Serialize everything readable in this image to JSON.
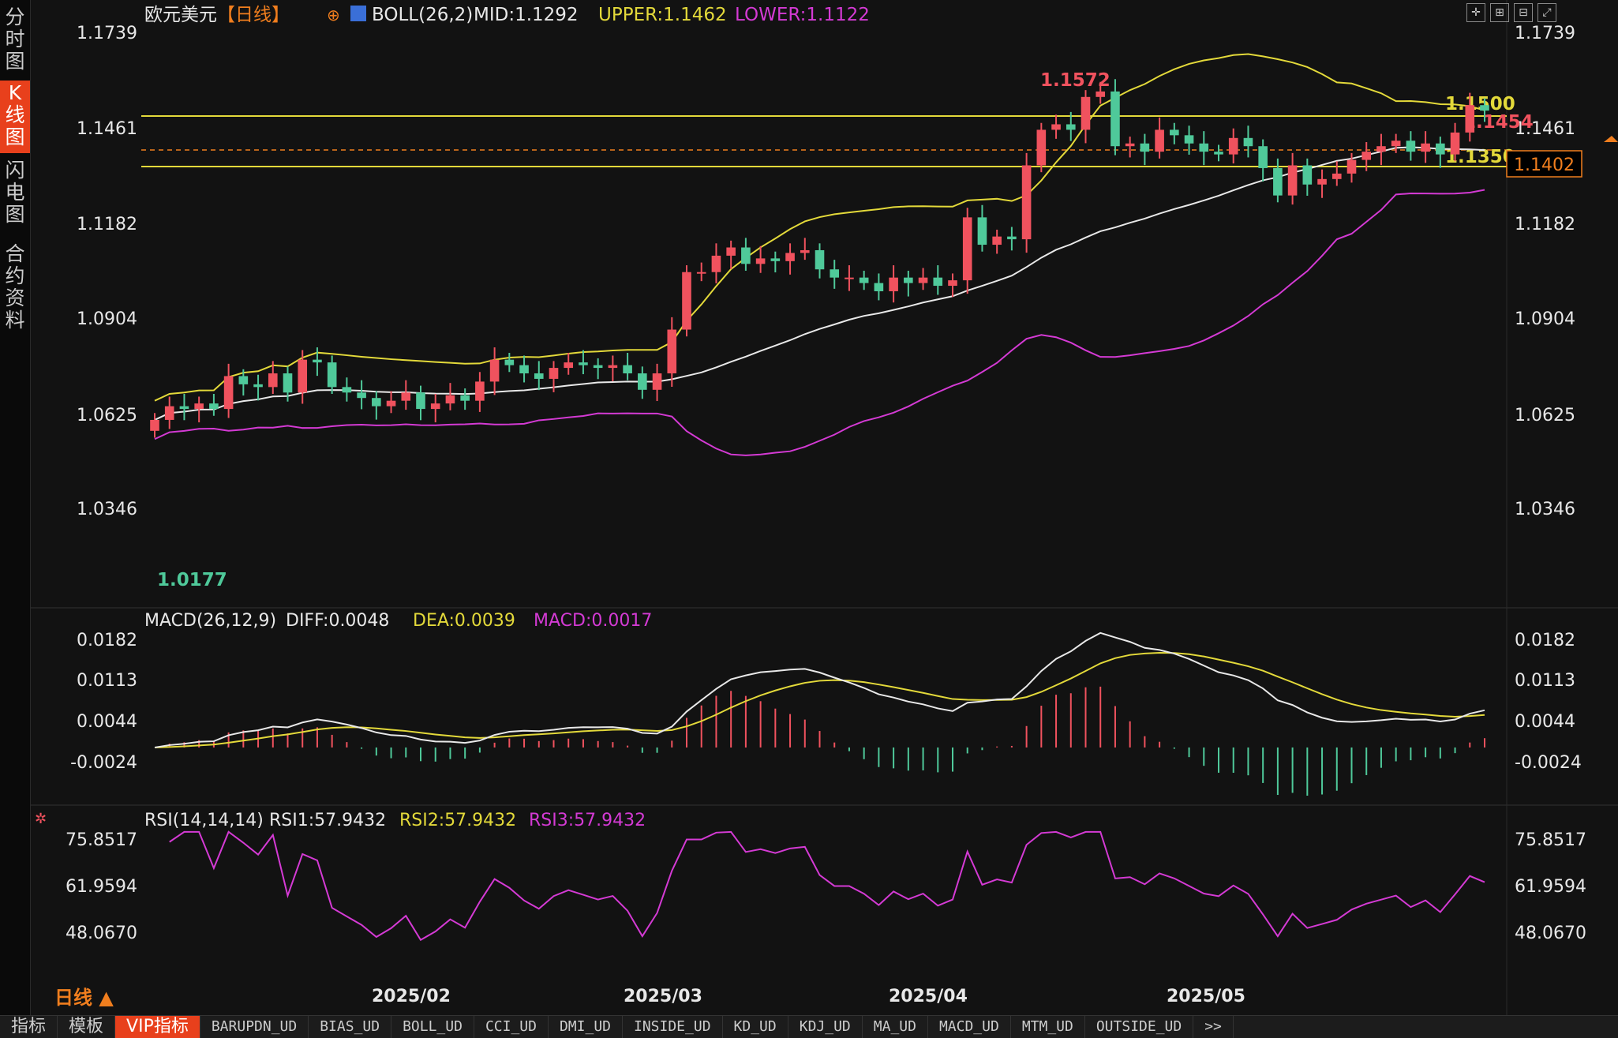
{
  "sidebar": {
    "tabs": [
      {
        "label": "分时图",
        "active": false
      },
      {
        "label": "K线图",
        "active": true
      },
      {
        "label": "闪电图",
        "active": false
      },
      {
        "label": "合约资料",
        "active": false
      }
    ]
  },
  "main_panel": {
    "instrument": "欧元美元",
    "period_tag": "【日线】",
    "indicator": "BOLL(26,2)",
    "mid_label": "MID:1.1292",
    "upper_label": "UPPER:1.1462",
    "lower_label": "LOWER:1.1122",
    "y_ticks": [
      "1.1739",
      "1.1461",
      "1.1182",
      "1.0904",
      "1.0625",
      "1.0346"
    ],
    "high_marker": "1.1572",
    "low_marker": "1.0177",
    "hline_1500": "1.1500",
    "hline_1350": "1.1350",
    "last_close_marker": "1.1454",
    "current_price_box": "1.1402"
  },
  "macd_panel": {
    "title": "MACD(26,12,9)",
    "diff_label": "DIFF:0.0048",
    "dea_label": "DEA:0.0039",
    "macd_label": "MACD:0.0017",
    "y_ticks": [
      "0.0182",
      "0.0113",
      "0.0044",
      "-0.0024"
    ]
  },
  "rsi_panel": {
    "title": "RSI(14,14,14)",
    "rsi1_label": "RSI1:57.9432",
    "rsi2_label": "RSI2:57.9432",
    "rsi3_label": "RSI3:57.9432",
    "y_ticks": [
      "75.8517",
      "61.9594",
      "48.0670"
    ]
  },
  "x_axis": {
    "labels": [
      "2025/02",
      "2025/03",
      "2025/04",
      "2025/05"
    ],
    "period_label": "日线 ▲"
  },
  "bottom_tabs": [
    "指标",
    "模板",
    "VIP指标",
    "BARUPDN_UD",
    "BIAS_UD",
    "BOLL_UD",
    "CCI_UD",
    "DMI_UD",
    "INSIDE_UD",
    "KD_UD",
    "KDJ_UD",
    "MA_UD",
    "MACD_UD",
    "MTM_UD",
    "OUTSIDE_UD",
    ">>"
  ],
  "active_bottom_tab": "VIP指标",
  "colors": {
    "up": "#f0525e",
    "down": "#4fc99a",
    "mid": "#e8e8e8",
    "upper": "#e3d93a",
    "lower": "#d43ad4",
    "accent": "#e8401c"
  },
  "chart_data": [
    {
      "type": "candlestick",
      "title": "欧元美元【日线】",
      "y_range": [
        1.0177,
        1.1739
      ],
      "x_range": [
        "2025/01",
        "2025/05"
      ],
      "indicator": "BOLL(26,2)",
      "values": {
        "MID": 1.1292,
        "UPPER": 1.1462,
        "LOWER": 1.1122
      },
      "high": 1.1572,
      "low": 1.0177,
      "horizontal_lines": [
        1.15,
        1.135
      ],
      "last_price": 1.1402
    },
    {
      "type": "line",
      "title": "MACD(26,12,9)",
      "series": [
        {
          "name": "DIFF",
          "last": 0.0048
        },
        {
          "name": "DEA",
          "last": 0.0039
        },
        {
          "name": "MACD",
          "last": 0.0017
        }
      ],
      "y_ticks": [
        0.0182,
        0.0113,
        0.0044,
        -0.0024
      ]
    },
    {
      "type": "line",
      "title": "RSI(14,14,14)",
      "series": [
        {
          "name": "RSI1",
          "last": 57.9432
        },
        {
          "name": "RSI2",
          "last": 57.9432
        },
        {
          "name": "RSI3",
          "last": 57.9432
        }
      ],
      "y_ticks": [
        75.8517,
        61.9594,
        48.067
      ]
    }
  ]
}
